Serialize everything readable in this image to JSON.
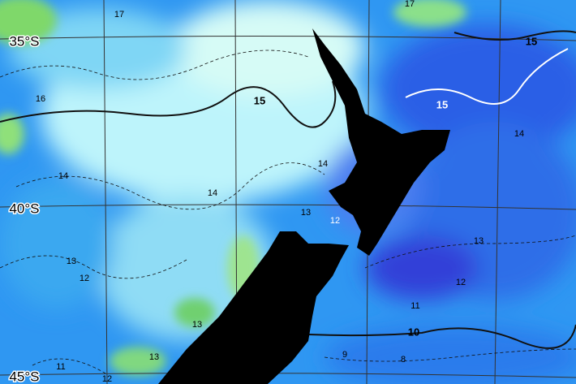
{
  "map": {
    "lat_labels": [
      "35°S",
      "40°S",
      "45°S"
    ],
    "contour_labels": [
      "17",
      "17",
      "15",
      "16",
      "15",
      "15",
      "14",
      "14",
      "14",
      "14",
      "13",
      "12",
      "13",
      "12",
      "13",
      "12",
      "13",
      "11",
      "10",
      "9",
      "8",
      "11",
      "13",
      "12"
    ]
  }
}
